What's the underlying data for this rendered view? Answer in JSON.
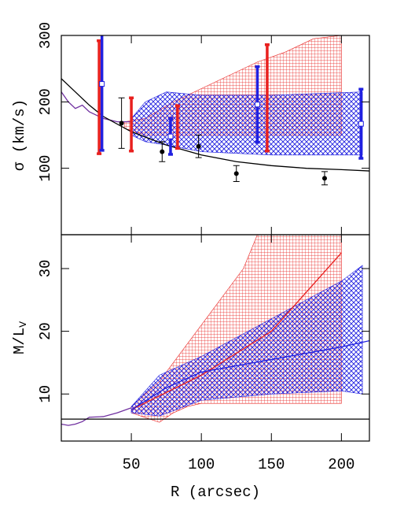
{
  "chart_data": [
    {
      "type": "line",
      "ylabel": "σ (km/s)",
      "xlim": [
        0,
        220
      ],
      "ylim": [
        0,
        300
      ],
      "xticks": [
        50,
        100,
        150,
        200
      ],
      "yticks": [
        100,
        200,
        300
      ],
      "show_xticklabels": false,
      "series": [
        {
          "kind": "band",
          "color": "#e8201e",
          "hatch": "grid",
          "x": [
            45,
            60,
            80,
            100,
            120,
            140,
            160,
            180,
            200
          ],
          "upper": [
            170,
            175,
            200,
            220,
            240,
            260,
            275,
            295,
            300
          ],
          "lower": [
            160,
            150,
            150,
            150,
            150,
            150,
            150,
            150,
            150
          ]
        },
        {
          "kind": "band",
          "color": "#2020e0",
          "hatch": "cross",
          "x": [
            50,
            60,
            75,
            100,
            150,
            215
          ],
          "upper": [
            175,
            200,
            215,
            210,
            210,
            215
          ],
          "lower": [
            150,
            140,
            135,
            125,
            120,
            120
          ]
        },
        {
          "kind": "line",
          "color": "#7030a0",
          "x": [
            0,
            5,
            10,
            15,
            20,
            30,
            40,
            50
          ],
          "values": [
            215,
            200,
            190,
            195,
            185,
            175,
            170,
            170
          ]
        },
        {
          "kind": "line",
          "color": "#000000",
          "x": [
            0,
            10,
            20,
            30,
            50,
            75,
            100,
            125,
            150,
            175,
            200,
            220
          ],
          "values": [
            235,
            215,
            195,
            178,
            155,
            135,
            120,
            110,
            104,
            100,
            98,
            96
          ]
        },
        {
          "kind": "errorbar",
          "color": "#000000",
          "marker": "dot",
          "x": [
            43,
            72,
            98,
            125,
            188
          ],
          "values": [
            168,
            125,
            133,
            92,
            85
          ],
          "errors": [
            38,
            15,
            17,
            12,
            10
          ]
        },
        {
          "kind": "errorbar",
          "color": "#e8201e",
          "marker": "none",
          "x": [
            27,
            50,
            83,
            147
          ],
          "values": [
            207,
            166,
            162,
            206
          ],
          "errors": [
            85,
            40,
            32,
            80
          ]
        },
        {
          "kind": "errorbar",
          "color": "#2020e0",
          "marker": "square",
          "x": [
            29,
            78,
            140,
            214
          ],
          "values": [
            227,
            148,
            196,
            167
          ],
          "errors": [
            100,
            27,
            57,
            52
          ]
        }
      ]
    },
    {
      "type": "line",
      "ylabel": "M/L",
      "ylabel_sub": "V",
      "xlabel": "R (arcsec)",
      "xlim": [
        0,
        220
      ],
      "ylim": [
        2.5,
        35.4
      ],
      "xticks": [
        50,
        100,
        150,
        200
      ],
      "yticks": [
        10,
        20,
        30
      ],
      "show_xticklabels": true,
      "series": [
        {
          "kind": "band",
          "color": "#e8201e",
          "hatch": "grid",
          "x": [
            50,
            70,
            80,
            90,
            100,
            110,
            130,
            140,
            150,
            200
          ],
          "upper": [
            8,
            12,
            15,
            18,
            21,
            24,
            30,
            35.4,
            35.4,
            35.4
          ],
          "lower": [
            7,
            5.5,
            7,
            8,
            8.5,
            8.5,
            8.5,
            8.5,
            8.5,
            8.5
          ]
        },
        {
          "kind": "band",
          "color": "#2020e0",
          "hatch": "cross",
          "x": [
            50,
            70,
            100,
            150,
            200,
            215
          ],
          "upper": [
            8,
            13,
            16,
            22,
            28,
            30.5
          ],
          "lower": [
            7,
            6.5,
            9,
            10,
            10.5,
            10
          ]
        },
        {
          "kind": "line",
          "color": "#e8201e",
          "x": [
            50,
            100,
            150,
            200
          ],
          "values": [
            7.5,
            13,
            20,
            32.5
          ]
        },
        {
          "kind": "line",
          "color": "#2020e0",
          "x": [
            50,
            75,
            100,
            150,
            200,
            220
          ],
          "values": [
            7.5,
            11,
            13.5,
            15.5,
            17.5,
            18.5
          ]
        },
        {
          "kind": "line",
          "color": "#7030a0",
          "x": [
            0,
            5,
            10,
            15,
            20,
            30,
            40,
            50
          ],
          "values": [
            5.2,
            5,
            5.2,
            5.6,
            6.3,
            6.4,
            7,
            7.8
          ]
        },
        {
          "kind": "line",
          "color": "#000000",
          "x": [
            0,
            220
          ],
          "values": [
            6,
            6
          ]
        }
      ]
    }
  ]
}
